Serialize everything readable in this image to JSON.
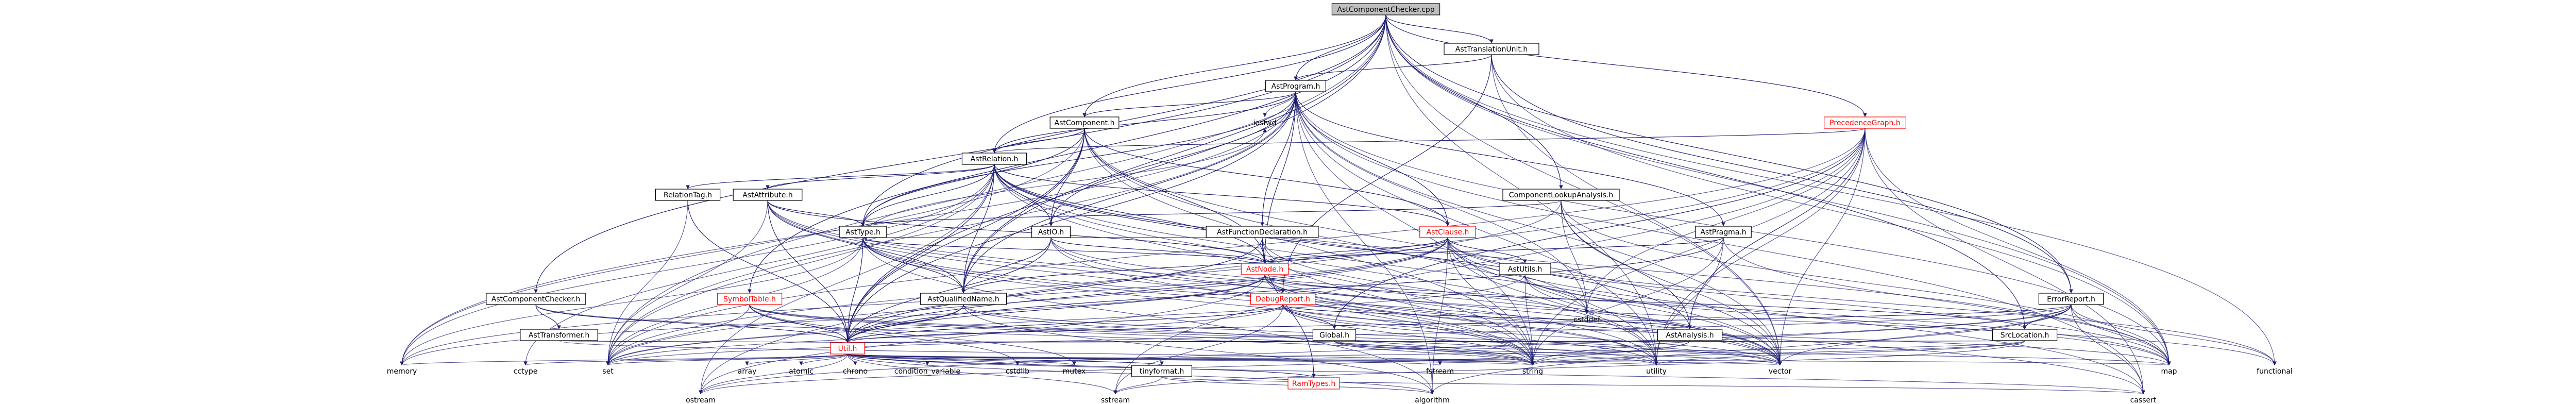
{
  "colors": {
    "link_edge": "#191970",
    "sys_edge": "#5a5a5a",
    "node_border": "#bfbfbf",
    "node_text": "#000000",
    "link_text": "#ff0000",
    "root_fill": "#bfbfbf",
    "root_border": "#000000"
  },
  "nodes": [
    {
      "id": "root",
      "label": "AstComponentChecker.cpp",
      "kind": "root"
    },
    {
      "id": "ati",
      "label": "AstTranslationUnit.h",
      "kind": "file"
    },
    {
      "id": "ap",
      "label": "AstProgram.h",
      "kind": "file"
    },
    {
      "id": "pg",
      "label": "PrecedenceGraph.h",
      "kind": "link"
    },
    {
      "id": "ac",
      "label": "AstComponent.h",
      "kind": "file"
    },
    {
      "id": "iosfwd",
      "label": "iosfwd",
      "kind": "sys"
    },
    {
      "id": "ar",
      "label": "AstRelation.h",
      "kind": "file"
    },
    {
      "id": "rt",
      "label": "RelationTag.h",
      "kind": "file"
    },
    {
      "id": "aa",
      "label": "AstAttribute.h",
      "kind": "file"
    },
    {
      "id": "aio",
      "label": "AstIO.h",
      "kind": "file"
    },
    {
      "id": "ala",
      "label": "ComponentLookupAnalysis.h",
      "kind": "file"
    },
    {
      "id": "afd",
      "label": "AstFunctionDeclaration.h",
      "kind": "file"
    },
    {
      "id": "acl",
      "label": "AstClause.h",
      "kind": "link"
    },
    {
      "id": "apr",
      "label": "AstPragma.h",
      "kind": "file"
    },
    {
      "id": "at",
      "label": "AstType.h",
      "kind": "file"
    },
    {
      "id": "an",
      "label": "AstNode.h",
      "kind": "link"
    },
    {
      "id": "dr",
      "label": "DebugReport.h",
      "kind": "link"
    },
    {
      "id": "au",
      "label": "AstUtils.h",
      "kind": "file"
    },
    {
      "id": "er",
      "label": "ErrorReport.h",
      "kind": "file"
    },
    {
      "id": "acc",
      "label": "AstComponentChecker.h",
      "kind": "file"
    },
    {
      "id": "aqn",
      "label": "AstQualifiedName.h",
      "kind": "file"
    },
    {
      "id": "st",
      "label": "SymbolTable.h",
      "kind": "link"
    },
    {
      "id": "atr",
      "label": "AstTransformer.h",
      "kind": "file"
    },
    {
      "id": "glob",
      "label": "Global.h",
      "kind": "file"
    },
    {
      "id": "aan",
      "label": "AstAnalysis.h",
      "kind": "file"
    },
    {
      "id": "sl",
      "label": "SrcLocation.h",
      "kind": "file"
    },
    {
      "id": "cstddef",
      "label": "cstddef",
      "kind": "sys"
    },
    {
      "id": "util",
      "label": "Util.h",
      "kind": "link"
    },
    {
      "id": "memory",
      "label": "memory",
      "kind": "sys"
    },
    {
      "id": "cctype",
      "label": "cctype",
      "kind": "sys"
    },
    {
      "id": "set",
      "label": "set",
      "kind": "sys"
    },
    {
      "id": "array",
      "label": "array",
      "kind": "sys"
    },
    {
      "id": "atomic",
      "label": "atomic",
      "kind": "sys"
    },
    {
      "id": "chrono",
      "label": "chrono",
      "kind": "sys"
    },
    {
      "id": "condvar",
      "label": "condition_variable",
      "kind": "sys"
    },
    {
      "id": "cstdlib",
      "label": "cstdlib",
      "kind": "sys"
    },
    {
      "id": "mutex",
      "label": "mutex",
      "kind": "sys"
    },
    {
      "id": "tf",
      "label": "tinyformat.h",
      "kind": "file"
    },
    {
      "id": "rtyp",
      "label": "RamTypes.h",
      "kind": "link"
    },
    {
      "id": "fstream",
      "label": "fstream",
      "kind": "sys"
    },
    {
      "id": "string",
      "label": "string",
      "kind": "sys"
    },
    {
      "id": "utility",
      "label": "utility",
      "kind": "sys"
    },
    {
      "id": "vector",
      "label": "vector",
      "kind": "sys"
    },
    {
      "id": "sstream",
      "label": "sstream",
      "kind": "sys"
    },
    {
      "id": "map",
      "label": "map",
      "kind": "sys"
    },
    {
      "id": "functional",
      "label": "functional",
      "kind": "sys"
    },
    {
      "id": "ostream",
      "label": "ostream",
      "kind": "sys"
    },
    {
      "id": "algorithm",
      "label": "algorithm",
      "kind": "sys"
    },
    {
      "id": "cassert",
      "label": "cassert",
      "kind": "sys"
    }
  ],
  "edges": [
    [
      "root",
      "ati"
    ],
    [
      "root",
      "ap"
    ],
    [
      "root",
      "pg"
    ],
    [
      "root",
      "ac"
    ],
    [
      "root",
      "ar"
    ],
    [
      "root",
      "ala"
    ],
    [
      "root",
      "at"
    ],
    [
      "root",
      "aqn"
    ],
    [
      "root",
      "acc"
    ],
    [
      "root",
      "er"
    ],
    [
      "root",
      "sl"
    ],
    [
      "root",
      "set"
    ],
    [
      "root",
      "map"
    ],
    [
      "root",
      "functional"
    ],
    [
      "root",
      "utility"
    ],
    [
      "root",
      "vector"
    ],
    [
      "root",
      "st"
    ],
    [
      "root",
      "util"
    ],
    [
      "ati",
      "ap"
    ],
    [
      "ati",
      "er"
    ],
    [
      "ati",
      "dr"
    ],
    [
      "ati",
      "map"
    ],
    [
      "ati",
      "vector"
    ],
    [
      "ap",
      "ac"
    ],
    [
      "ap",
      "ar"
    ],
    [
      "ap",
      "aio"
    ],
    [
      "ap",
      "afd"
    ],
    [
      "ap",
      "acl"
    ],
    [
      "ap",
      "apr"
    ],
    [
      "ap",
      "at"
    ],
    [
      "ap",
      "an"
    ],
    [
      "ap",
      "aqn"
    ],
    [
      "ap",
      "iosfwd"
    ],
    [
      "ap",
      "memory"
    ],
    [
      "ap",
      "map"
    ],
    [
      "ap",
      "set"
    ],
    [
      "ap",
      "string"
    ],
    [
      "ap",
      "vector"
    ],
    [
      "ap",
      "cstddef"
    ],
    [
      "ap",
      "util"
    ],
    [
      "ap",
      "algorithm"
    ],
    [
      "ap",
      "cassert"
    ],
    [
      "ap",
      "utility"
    ],
    [
      "pg",
      "ar"
    ],
    [
      "pg",
      "aan"
    ],
    [
      "pg",
      "glob"
    ],
    [
      "pg",
      "cstddef"
    ],
    [
      "pg",
      "set"
    ],
    [
      "pg",
      "string"
    ],
    [
      "pg",
      "map"
    ],
    [
      "pg",
      "sstream"
    ],
    [
      "pg",
      "vector"
    ],
    [
      "pg",
      "utility"
    ],
    [
      "pg",
      "cassert"
    ],
    [
      "pg",
      "ostream"
    ],
    [
      "ac",
      "ar"
    ],
    [
      "ac",
      "aio"
    ],
    [
      "ac",
      "acl"
    ],
    [
      "ac",
      "at"
    ],
    [
      "ac",
      "an"
    ],
    [
      "ac",
      "aqn"
    ],
    [
      "ac",
      "memory"
    ],
    [
      "ac",
      "string"
    ],
    [
      "ac",
      "vector"
    ],
    [
      "ac",
      "util"
    ],
    [
      "ac",
      "utility"
    ],
    [
      "ar",
      "rt"
    ],
    [
      "ar",
      "aa"
    ],
    [
      "ar",
      "aio"
    ],
    [
      "ar",
      "acl"
    ],
    [
      "ar",
      "at"
    ],
    [
      "ar",
      "an"
    ],
    [
      "ar",
      "aqn"
    ],
    [
      "ar",
      "util"
    ],
    [
      "ar",
      "set"
    ],
    [
      "ar",
      "memory"
    ],
    [
      "ar",
      "string"
    ],
    [
      "ar",
      "vector"
    ],
    [
      "ar",
      "cctype"
    ],
    [
      "ar",
      "ostream"
    ],
    [
      "ar",
      "utility"
    ],
    [
      "ar",
      "map"
    ],
    [
      "ar",
      "cstddef"
    ],
    [
      "ar",
      "aan"
    ],
    [
      "rt",
      "util"
    ],
    [
      "rt",
      "set"
    ],
    [
      "aa",
      "at"
    ],
    [
      "aa",
      "an"
    ],
    [
      "aa",
      "aqn"
    ],
    [
      "aa",
      "util"
    ],
    [
      "aa",
      "set"
    ],
    [
      "aa",
      "string"
    ],
    [
      "aa",
      "utility"
    ],
    [
      "aa",
      "vector"
    ],
    [
      "aio",
      "an"
    ],
    [
      "aio",
      "aqn"
    ],
    [
      "aio",
      "util"
    ],
    [
      "aio",
      "map"
    ],
    [
      "aio",
      "string"
    ],
    [
      "aio",
      "vector"
    ],
    [
      "ala",
      "at"
    ],
    [
      "ala",
      "aan"
    ],
    [
      "ala",
      "cstddef"
    ],
    [
      "ala",
      "map"
    ],
    [
      "ala",
      "vector"
    ],
    [
      "ala",
      "set"
    ],
    [
      "afd",
      "an"
    ],
    [
      "afd",
      "at"
    ],
    [
      "afd",
      "rtyp"
    ],
    [
      "afd",
      "util"
    ],
    [
      "afd",
      "string"
    ],
    [
      "afd",
      "vector"
    ],
    [
      "acl",
      "an"
    ],
    [
      "acl",
      "aqn"
    ],
    [
      "acl",
      "util"
    ],
    [
      "acl",
      "au"
    ],
    [
      "acl",
      "map"
    ],
    [
      "acl",
      "set"
    ],
    [
      "acl",
      "vector"
    ],
    [
      "acl",
      "utility"
    ],
    [
      "acl",
      "cassert"
    ],
    [
      "acl",
      "algorithm"
    ],
    [
      "acl",
      "string"
    ],
    [
      "acl",
      "functional"
    ],
    [
      "acl",
      "memory"
    ],
    [
      "apr",
      "an"
    ],
    [
      "apr",
      "util"
    ],
    [
      "apr",
      "string"
    ],
    [
      "apr",
      "utility"
    ],
    [
      "apr",
      "map"
    ],
    [
      "at",
      "an"
    ],
    [
      "at",
      "aqn"
    ],
    [
      "at",
      "util"
    ],
    [
      "at",
      "set"
    ],
    [
      "at",
      "string"
    ],
    [
      "at",
      "utility"
    ],
    [
      "at",
      "vector"
    ],
    [
      "at",
      "memory"
    ],
    [
      "at",
      "algorithm"
    ],
    [
      "at",
      "iosfwd"
    ],
    [
      "an",
      "sl"
    ],
    [
      "an",
      "util"
    ],
    [
      "an",
      "memory"
    ],
    [
      "an",
      "string"
    ],
    [
      "an",
      "vector"
    ],
    [
      "an",
      "utility"
    ],
    [
      "an",
      "cassert"
    ],
    [
      "an",
      "functional"
    ],
    [
      "an",
      "ostream"
    ],
    [
      "dr",
      "glob"
    ],
    [
      "dr",
      "aan"
    ],
    [
      "dr",
      "util"
    ],
    [
      "dr",
      "string"
    ],
    [
      "dr",
      "vector"
    ],
    [
      "dr",
      "map"
    ],
    [
      "dr",
      "sstream"
    ],
    [
      "dr",
      "set"
    ],
    [
      "dr",
      "utility"
    ],
    [
      "au",
      "cstddef"
    ],
    [
      "au",
      "map"
    ],
    [
      "au",
      "string"
    ],
    [
      "au",
      "vector"
    ],
    [
      "au",
      "set"
    ],
    [
      "er",
      "sl"
    ],
    [
      "er",
      "util"
    ],
    [
      "er",
      "string"
    ],
    [
      "er",
      "vector"
    ],
    [
      "er",
      "set"
    ],
    [
      "er",
      "iostream"
    ],
    [
      "er",
      "algorithm"
    ],
    [
      "er",
      "cassert"
    ],
    [
      "er",
      "functional"
    ],
    [
      "er",
      "ostream"
    ],
    [
      "er",
      "map"
    ],
    [
      "acc",
      "atr"
    ],
    [
      "acc",
      "util"
    ],
    [
      "acc",
      "string"
    ],
    [
      "aqn",
      "util"
    ],
    [
      "aqn",
      "string"
    ],
    [
      "aqn",
      "vector"
    ],
    [
      "aqn",
      "algorithm"
    ],
    [
      "aqn",
      "iostream"
    ],
    [
      "aqn",
      "set"
    ],
    [
      "st",
      "util"
    ],
    [
      "st",
      "string"
    ],
    [
      "st",
      "iostream"
    ],
    [
      "st",
      "mutex"
    ],
    [
      "st",
      "vector"
    ],
    [
      "st",
      "set"
    ],
    [
      "st",
      "cstdlib"
    ],
    [
      "st",
      "utility"
    ],
    [
      "atr",
      "util"
    ],
    [
      "atr",
      "string"
    ],
    [
      "glob",
      "util"
    ],
    [
      "glob",
      "map"
    ],
    [
      "glob",
      "string"
    ],
    [
      "glob",
      "vector"
    ],
    [
      "glob",
      "utility"
    ],
    [
      "aan",
      "util"
    ],
    [
      "aan",
      "string"
    ],
    [
      "aan",
      "ostream"
    ],
    [
      "sl",
      "util"
    ],
    [
      "sl",
      "string"
    ],
    [
      "sl",
      "sstream"
    ],
    [
      "sl",
      "utility"
    ],
    [
      "sl",
      "cstdlib"
    ],
    [
      "util",
      "array"
    ],
    [
      "util",
      "atomic"
    ],
    [
      "util",
      "chrono"
    ],
    [
      "util",
      "condvar"
    ],
    [
      "util",
      "cstdlib"
    ],
    [
      "util",
      "mutex"
    ],
    [
      "util",
      "tf"
    ],
    [
      "util",
      "rtyp"
    ],
    [
      "util",
      "fstream"
    ],
    [
      "util",
      "string"
    ],
    [
      "util",
      "utility"
    ],
    [
      "util",
      "vector"
    ],
    [
      "util",
      "map"
    ],
    [
      "util",
      "set"
    ],
    [
      "util",
      "memory"
    ],
    [
      "util",
      "cctype"
    ],
    [
      "util",
      "sstream"
    ],
    [
      "util",
      "algorithm"
    ],
    [
      "util",
      "cassert"
    ],
    [
      "util",
      "ostream"
    ],
    [
      "util",
      "iostream"
    ],
    [
      "tf",
      "cassert"
    ],
    [
      "tf",
      "iostream"
    ],
    [
      "tf",
      "sstream"
    ],
    [
      "tf",
      "algorithm"
    ]
  ]
}
